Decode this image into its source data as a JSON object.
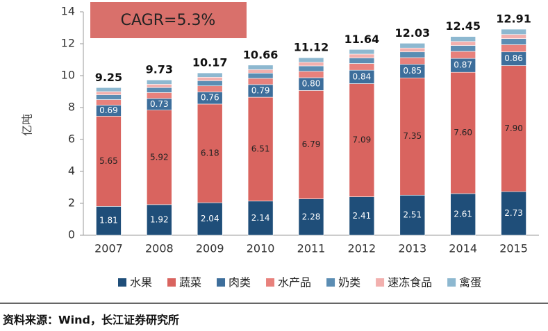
{
  "chart_data": {
    "type": "stacked_bar",
    "annotation": "CAGR=5.3%",
    "y_label": "亿吨",
    "source": "资料来源：Wind，长江证券研究所",
    "categories": [
      "2007",
      "2008",
      "2009",
      "2010",
      "2011",
      "2012",
      "2013",
      "2014",
      "2015"
    ],
    "totals": [
      9.25,
      9.73,
      10.17,
      10.66,
      11.12,
      11.64,
      12.03,
      12.45,
      12.91
    ],
    "ylim": [
      0,
      14
    ],
    "yticks": [
      0,
      2,
      4,
      6,
      8,
      10,
      12,
      14
    ],
    "series": [
      {
        "name": "水果",
        "color": "#1f4e79",
        "values": [
          1.81,
          1.92,
          2.04,
          2.14,
          2.28,
          2.41,
          2.51,
          2.61,
          2.73
        ],
        "value_labels": [
          "1.81",
          "1.92",
          "2.04",
          "2.14",
          "2.28",
          "2.41",
          "2.51",
          "2.61",
          "2.73"
        ]
      },
      {
        "name": "蔬菜",
        "color": "#d9645f",
        "values": [
          5.65,
          5.92,
          6.18,
          6.51,
          6.79,
          7.09,
          7.35,
          7.6,
          7.9
        ],
        "value_labels": [
          "5.65",
          "5.92",
          "6.18",
          "6.51",
          "6.79",
          "7.09",
          "7.35",
          "7.60",
          "7.90"
        ]
      },
      {
        "name": "肉类",
        "color": "#3d6e9b",
        "values": [
          0.69,
          0.73,
          0.76,
          0.79,
          0.8,
          0.84,
          0.85,
          0.87,
          0.86
        ],
        "value_labels": [
          "0.69",
          "0.73",
          "0.76",
          "0.79",
          "0.80",
          "0.84",
          "0.85",
          "0.87",
          "0.86"
        ]
      },
      {
        "name": "水产品",
        "color": "#e8817c",
        "values": [
          0.35,
          0.37,
          0.38,
          0.39,
          0.4,
          0.42,
          0.42,
          0.44,
          0.45
        ]
      },
      {
        "name": "奶类",
        "color": "#5b8db3",
        "values": [
          0.3,
          0.31,
          0.32,
          0.33,
          0.34,
          0.35,
          0.36,
          0.37,
          0.38
        ]
      },
      {
        "name": "速冻食品",
        "color": "#f2b0ae",
        "values": [
          0.2,
          0.21,
          0.22,
          0.22,
          0.23,
          0.24,
          0.24,
          0.25,
          0.26
        ]
      },
      {
        "name": "禽蛋",
        "color": "#8db8d0",
        "values": [
          0.25,
          0.27,
          0.27,
          0.28,
          0.28,
          0.29,
          0.3,
          0.31,
          0.33
        ]
      }
    ]
  }
}
